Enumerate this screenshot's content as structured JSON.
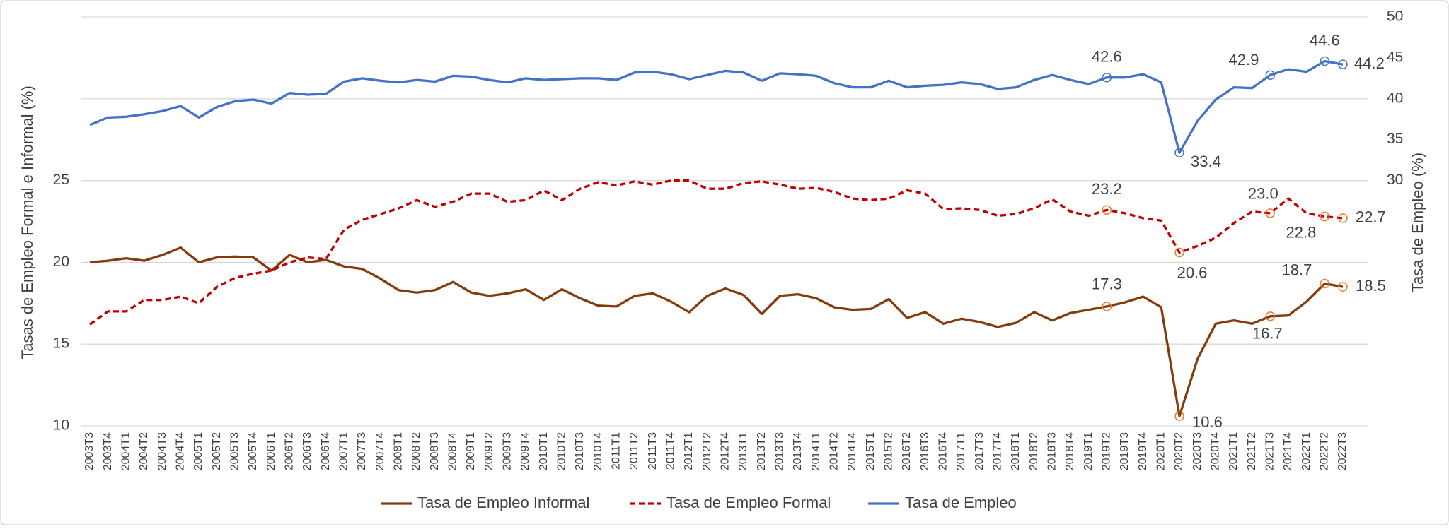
{
  "chart_data": {
    "type": "line",
    "ylabel": "Tasas de Empleo Formal e Informal (%)",
    "y2label": "Tasa de Empleo (%)",
    "categories": [
      "2003T3",
      "2003T4",
      "2004T1",
      "2004T2",
      "2004T3",
      "2004T4",
      "2005T1",
      "2005T2",
      "2005T3",
      "2005T4",
      "2006T1",
      "2006T2",
      "2006T3",
      "2006T4",
      "2007T1",
      "2007T3",
      "2007T4",
      "2008T1",
      "2008T2",
      "2008T3",
      "2008T4",
      "2009T1",
      "2009T2",
      "2009T3",
      "2009T4",
      "2010T1",
      "2010T2",
      "2010T3",
      "2010T4",
      "2011T1",
      "2011T2",
      "2011T3",
      "2011T4",
      "2012T1",
      "2012T2",
      "2012T4",
      "2013T1",
      "2013T2",
      "2013T3",
      "2013T4",
      "2014T1",
      "2014T2",
      "2014T4",
      "2015T1",
      "2015T2",
      "2016T2",
      "2016T3",
      "2016T4",
      "2017T1",
      "2017T3",
      "2017T4",
      "2018T1",
      "2018T2",
      "2018T3",
      "2018T4",
      "2019T1",
      "2019T2",
      "2019T3",
      "2019T4",
      "2020T1",
      "2020T2",
      "2020T3",
      "2020T4",
      "2021T1",
      "2021T2",
      "2021T3",
      "2021T4",
      "2022T1",
      "2022T2",
      "2022T3"
    ],
    "series": [
      {
        "name": "Tasa de Empleo Informal",
        "color": "#843c0c",
        "dash": false,
        "marker_color": "#ed7d31",
        "values": [
          20.0,
          20.1,
          20.25,
          20.1,
          20.45,
          20.9,
          20.0,
          20.3,
          20.35,
          20.3,
          19.5,
          20.45,
          20.0,
          20.15,
          19.75,
          19.6,
          19.0,
          18.3,
          18.15,
          18.3,
          18.8,
          18.15,
          17.95,
          18.1,
          18.35,
          17.7,
          18.35,
          17.8,
          17.35,
          17.3,
          17.95,
          18.1,
          17.6,
          16.95,
          17.95,
          18.4,
          18.0,
          16.85,
          17.95,
          18.05,
          17.8,
          17.25,
          17.1,
          17.15,
          17.75,
          16.6,
          16.95,
          16.25,
          16.55,
          16.35,
          16.05,
          16.3,
          16.95,
          16.45,
          16.9,
          17.1,
          17.3,
          17.55,
          17.9,
          17.25,
          10.6,
          14.1,
          16.25,
          16.45,
          16.25,
          16.7,
          16.75,
          17.6,
          18.7,
          18.5
        ],
        "value_labels": [
          null,
          null,
          null,
          null,
          null,
          null,
          null,
          null,
          null,
          null,
          null,
          null,
          null,
          null,
          null,
          null,
          null,
          null,
          null,
          null,
          null,
          null,
          null,
          null,
          null,
          null,
          null,
          null,
          null,
          null,
          null,
          null,
          null,
          null,
          null,
          null,
          null,
          null,
          null,
          null,
          null,
          null,
          null,
          null,
          null,
          null,
          null,
          null,
          null,
          null,
          null,
          null,
          null,
          null,
          null,
          null,
          "17.3",
          null,
          null,
          null,
          "10.6",
          null,
          null,
          null,
          null,
          "16.7",
          null,
          null,
          "18.7",
          "18.5"
        ]
      },
      {
        "name": "Tasa de Empleo Formal",
        "color": "#c00000",
        "dash": true,
        "marker_color": "#ed7d31",
        "values": [
          16.2,
          17.0,
          17.0,
          17.7,
          17.7,
          17.9,
          17.5,
          18.5,
          19.05,
          19.3,
          19.5,
          20.0,
          20.3,
          20.2,
          22.0,
          22.6,
          22.95,
          23.3,
          23.8,
          23.4,
          23.7,
          24.2,
          24.2,
          23.7,
          23.8,
          24.4,
          23.8,
          24.5,
          24.9,
          24.7,
          24.95,
          24.75,
          25.0,
          25.0,
          24.5,
          24.5,
          24.85,
          24.95,
          24.75,
          24.5,
          24.55,
          24.3,
          23.9,
          23.8,
          23.9,
          24.4,
          24.2,
          23.25,
          23.3,
          23.2,
          22.85,
          22.95,
          23.3,
          23.85,
          23.1,
          22.85,
          23.2,
          23.0,
          22.7,
          22.55,
          20.6,
          21.0,
          21.5,
          22.4,
          23.1,
          23.0,
          23.9,
          23.0,
          22.8,
          22.7
        ],
        "value_labels": [
          null,
          null,
          null,
          null,
          null,
          null,
          null,
          null,
          null,
          null,
          null,
          null,
          null,
          null,
          null,
          null,
          null,
          null,
          null,
          null,
          null,
          null,
          null,
          null,
          null,
          null,
          null,
          null,
          null,
          null,
          null,
          null,
          null,
          null,
          null,
          null,
          null,
          null,
          null,
          null,
          null,
          null,
          null,
          null,
          null,
          null,
          null,
          null,
          null,
          null,
          null,
          null,
          null,
          null,
          null,
          null,
          "23.2",
          null,
          null,
          null,
          "20.6",
          null,
          null,
          null,
          null,
          "23.0",
          null,
          null,
          "22.8",
          "22.7"
        ]
      },
      {
        "name": "Tasa de Empleo",
        "color": "#4472c4",
        "dash": false,
        "marker_color": "#4472c4",
        "axis": "y2",
        "values": [
          36.8,
          37.7,
          37.8,
          38.1,
          38.5,
          39.1,
          37.7,
          39.0,
          39.7,
          39.9,
          39.4,
          40.7,
          40.5,
          40.6,
          42.1,
          42.5,
          42.2,
          42.0,
          42.3,
          42.1,
          42.8,
          42.7,
          42.3,
          42.0,
          42.5,
          42.3,
          42.4,
          42.5,
          42.5,
          42.3,
          43.2,
          43.3,
          43.0,
          42.4,
          42.9,
          43.4,
          43.2,
          42.2,
          43.1,
          43.0,
          42.8,
          41.9,
          41.4,
          41.4,
          42.2,
          41.4,
          41.6,
          41.7,
          42.0,
          41.8,
          41.2,
          41.4,
          42.3,
          42.9,
          42.3,
          41.8,
          42.6,
          42.6,
          43.0,
          42.0,
          33.4,
          37.3,
          39.9,
          41.4,
          41.3,
          42.9,
          43.6,
          43.3,
          44.6,
          44.2
        ],
        "value_labels": [
          null,
          null,
          null,
          null,
          null,
          null,
          null,
          null,
          null,
          null,
          null,
          null,
          null,
          null,
          null,
          null,
          null,
          null,
          null,
          null,
          null,
          null,
          null,
          null,
          null,
          null,
          null,
          null,
          null,
          null,
          null,
          null,
          null,
          null,
          null,
          null,
          null,
          null,
          null,
          null,
          null,
          null,
          null,
          null,
          null,
          null,
          null,
          null,
          null,
          null,
          null,
          null,
          null,
          null,
          null,
          null,
          "42.6",
          null,
          null,
          null,
          "33.4",
          null,
          null,
          null,
          null,
          "42.9",
          null,
          null,
          "44.6",
          "44.2"
        ]
      }
    ],
    "ylim": [
      10,
      35
    ],
    "yticks": [
      10,
      15,
      20,
      25
    ],
    "y2lim": [
      0,
      50
    ],
    "y2ticks": [
      30,
      35,
      40,
      45,
      50
    ],
    "grid": true,
    "legend": "bottom"
  }
}
